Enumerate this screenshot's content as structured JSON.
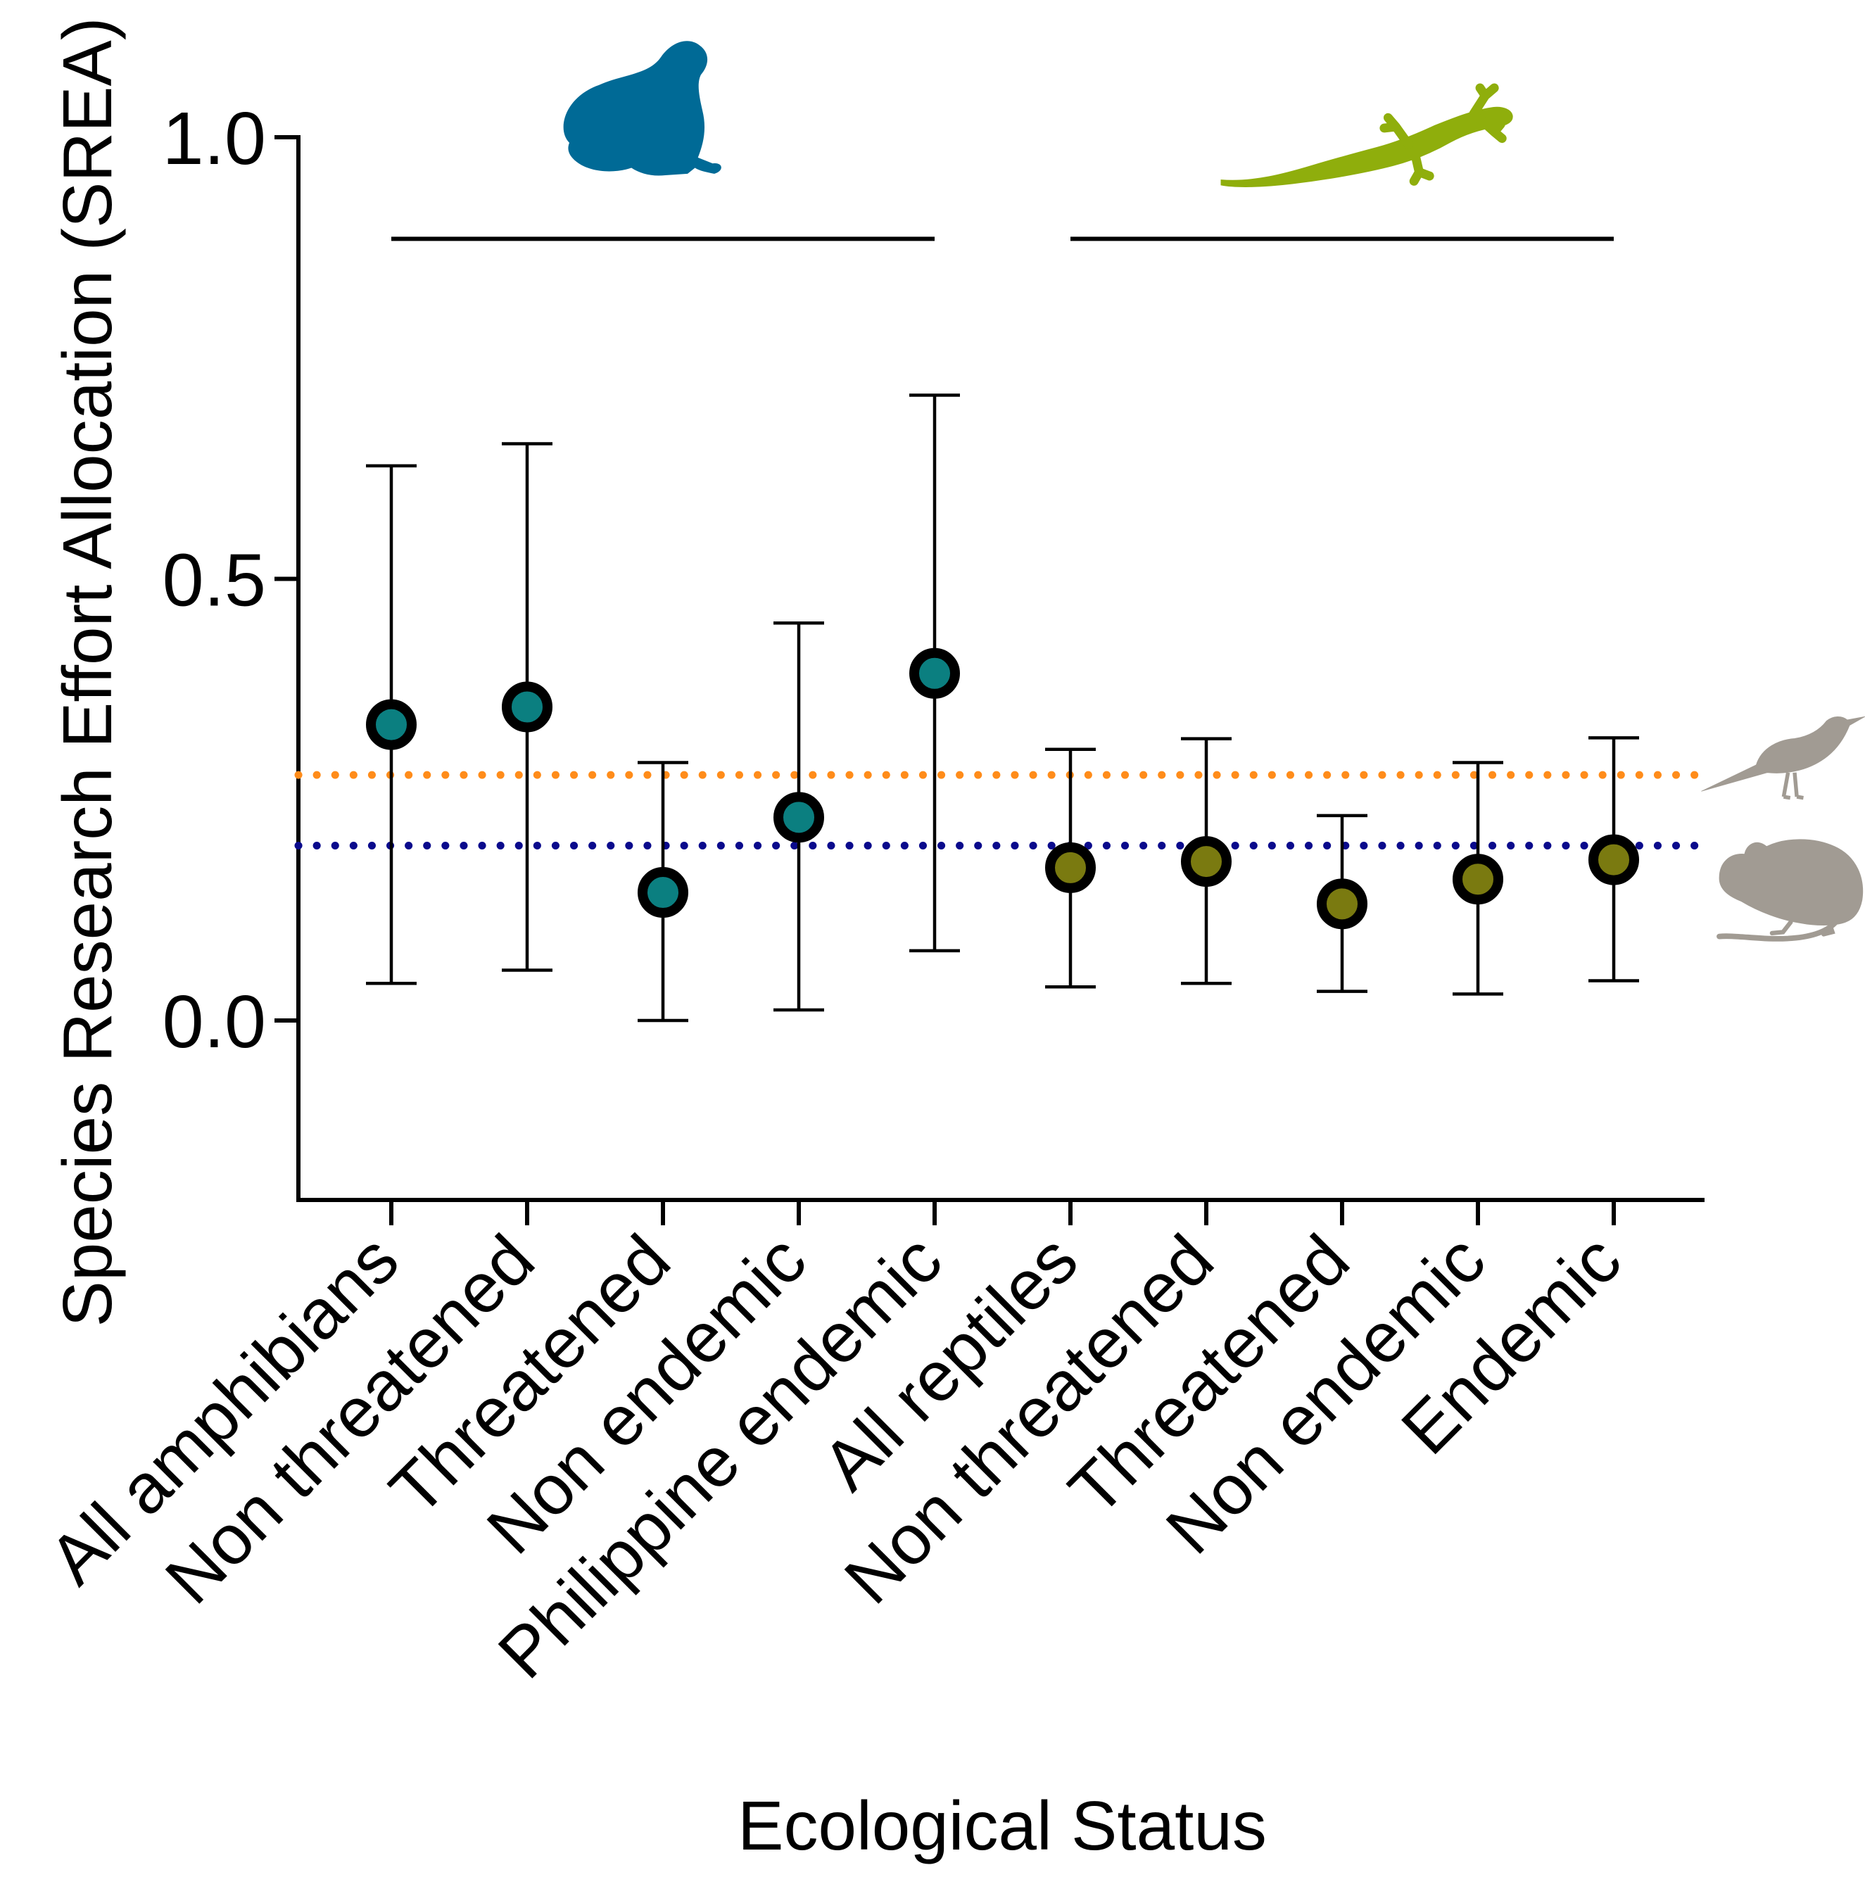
{
  "chart_data": {
    "type": "scatter",
    "title": "",
    "xlabel": "Ecological Status",
    "ylabel": "Species Research Effort Allocation (SREA)",
    "ylim": [
      -0.2,
      1.0
    ],
    "yticks": [
      0.0,
      0.5,
      1.0
    ],
    "ytick_labels": [
      "0.0",
      "0.5",
      "1.0"
    ],
    "grid": false,
    "categories": [
      "All amphibians",
      "Non threatened",
      "Threatened",
      "Non endemic",
      "Philippine endemic",
      "All reptiles",
      "Non threatened",
      "Threatened",
      "Non endemic",
      "Endemic"
    ],
    "series": [
      {
        "group_icon": "frog-icon",
        "color": "#0b7f80",
        "points": [
          {
            "category_index": 0,
            "mean": 0.335,
            "lower": 0.042,
            "upper": 0.628
          },
          {
            "category_index": 1,
            "mean": 0.355,
            "lower": 0.057,
            "upper": 0.653
          },
          {
            "category_index": 2,
            "mean": 0.145,
            "lower": 0.0,
            "upper": 0.292
          },
          {
            "category_index": 3,
            "mean": 0.23,
            "lower": 0.012,
            "upper": 0.45
          },
          {
            "category_index": 4,
            "mean": 0.393,
            "lower": 0.079,
            "upper": 0.708
          }
        ]
      },
      {
        "group_icon": "lizard-icon",
        "color": "#7a7a10",
        "points": [
          {
            "category_index": 5,
            "mean": 0.173,
            "lower": 0.038,
            "upper": 0.307
          },
          {
            "category_index": 6,
            "mean": 0.18,
            "lower": 0.042,
            "upper": 0.319
          },
          {
            "category_index": 7,
            "mean": 0.132,
            "lower": 0.033,
            "upper": 0.232
          },
          {
            "category_index": 8,
            "mean": 0.16,
            "lower": 0.03,
            "upper": 0.292
          },
          {
            "category_index": 9,
            "mean": 0.182,
            "lower": 0.045,
            "upper": 0.32
          }
        ]
      }
    ],
    "group_bars": [
      {
        "icon": "frog-icon",
        "icon_color": "#006a96",
        "from_index": 0,
        "to_index": 4,
        "level": 0.885
      },
      {
        "icon": "lizard-icon",
        "icon_color": "#8fae0c",
        "from_index": 5,
        "to_index": 9,
        "level": 0.885
      }
    ],
    "reference_lines": [
      {
        "value": 0.278,
        "color": "#ff8c1a",
        "style": "dotted",
        "icon": "bird-icon",
        "icon_color": "#a19b93"
      },
      {
        "value": 0.198,
        "color": "#0a0a8c",
        "style": "dotted",
        "icon": "rodent-icon",
        "icon_color": "#a19b93"
      }
    ]
  }
}
